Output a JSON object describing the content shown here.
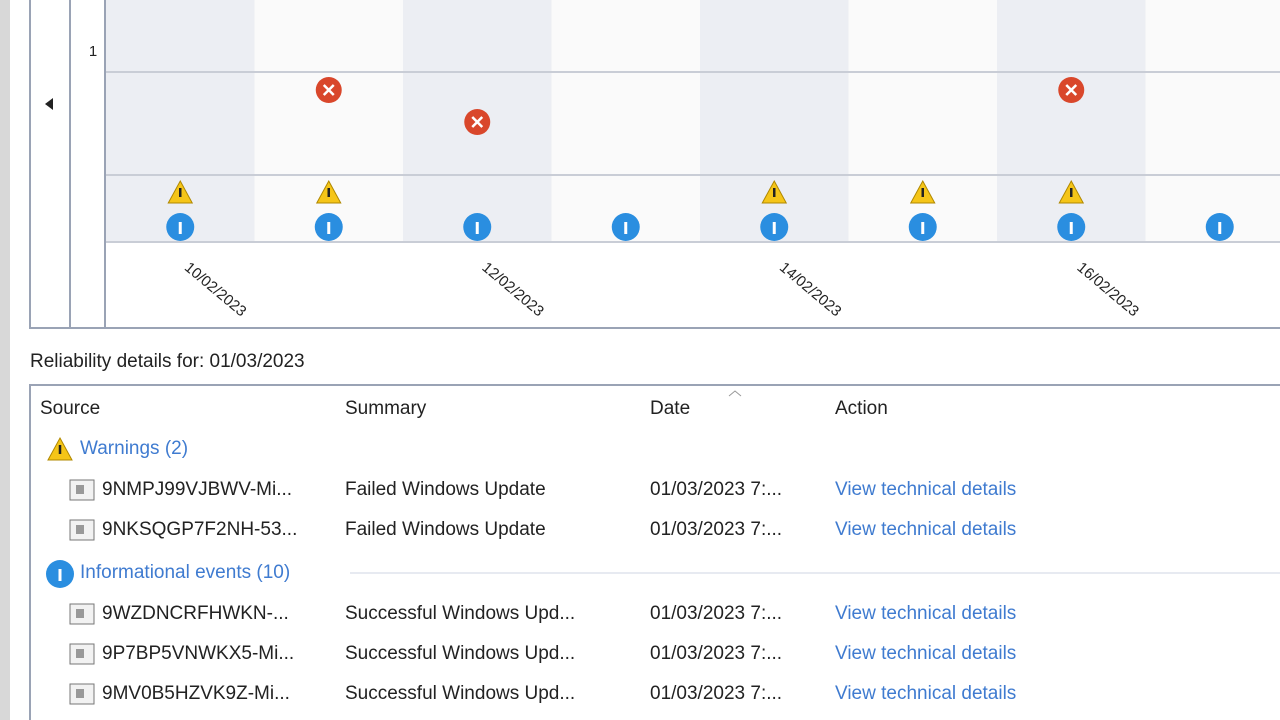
{
  "chart": {
    "y_axis_label": "1",
    "dates": [
      "10/02/2023",
      "12/02/2023",
      "14/02/2023",
      "16/02/2023"
    ]
  },
  "details": {
    "title": "Reliability details for: 01/03/2023",
    "columns": [
      "Source",
      "Summary",
      "Date",
      "Action"
    ],
    "groups": [
      {
        "label": "Warnings (2)",
        "rows": [
          [
            "9NMPJ99VJBWV-Mi...",
            "Failed Windows Update",
            "01/03/2023 7:...",
            "View technical details"
          ],
          [
            "9NKSQGP7F2NH-53...",
            "Failed Windows Update",
            "01/03/2023 7:...",
            "View technical details"
          ]
        ]
      },
      {
        "label": "Informational events (10)",
        "rows": [
          [
            "9WZDNCRFHWKN-...",
            "Successful Windows Upd...",
            "01/03/2023 7:...",
            "View technical details"
          ],
          [
            "9P7BP5VNWKX5-Mi...",
            "Successful Windows Upd...",
            "01/03/2023 7:...",
            "View technical details"
          ],
          [
            "9MV0B5HZVK9Z-Mi...",
            "Successful Windows Upd...",
            "01/03/2023 7:...",
            "View technical details"
          ]
        ]
      }
    ]
  }
}
